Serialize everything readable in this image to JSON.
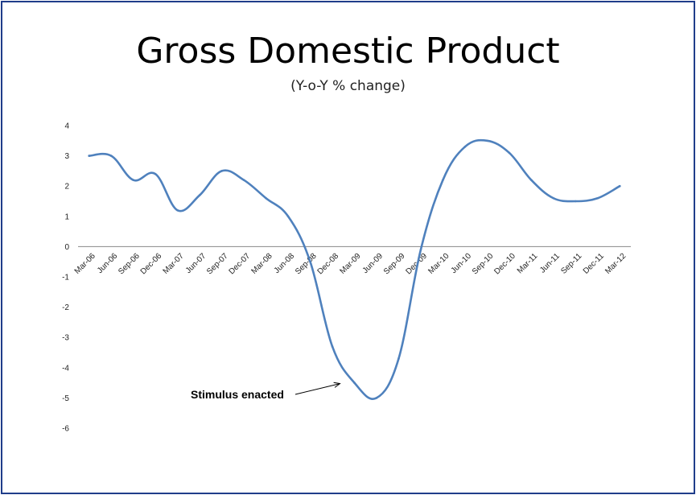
{
  "chart_data": {
    "type": "line",
    "title": "Gross Domestic Product",
    "subtitle": "(Y-o-Y % change)",
    "xlabel": "",
    "ylabel": "",
    "ylim": [
      -6,
      4
    ],
    "yticks": [
      4,
      3,
      2,
      1,
      0,
      -1,
      -2,
      -3,
      -4,
      -5,
      -6
    ],
    "categories": [
      "Mar-06",
      "Jun-06",
      "Sep-06",
      "Dec-06",
      "Mar-07",
      "Jun-07",
      "Sep-07",
      "Dec-07",
      "Mar-08",
      "Jun-08",
      "Sep-08",
      "Dec-08",
      "Mar-09",
      "Jun-09",
      "Sep-09",
      "Dec-09",
      "Mar-10",
      "Jun-10",
      "Sep-10",
      "Dec-10",
      "Mar-11",
      "Jun-11",
      "Sep-11",
      "Dec-11",
      "Mar-12"
    ],
    "series": [
      {
        "values": [
          3.0,
          3.0,
          2.2,
          2.4,
          1.2,
          1.7,
          2.5,
          2.2,
          1.6,
          1.0,
          -0.5,
          -3.3,
          -4.5,
          -5.0,
          -3.7,
          -0.1,
          2.2,
          3.3,
          3.5,
          3.1,
          2.2,
          1.6,
          1.5,
          1.6,
          2.0
        ],
        "color": "#4f81bd"
      }
    ],
    "grid": false,
    "legend": "none",
    "annotations": [
      {
        "text": "Stimulus enacted",
        "x": "Mar-09",
        "y": -4.5
      }
    ]
  }
}
